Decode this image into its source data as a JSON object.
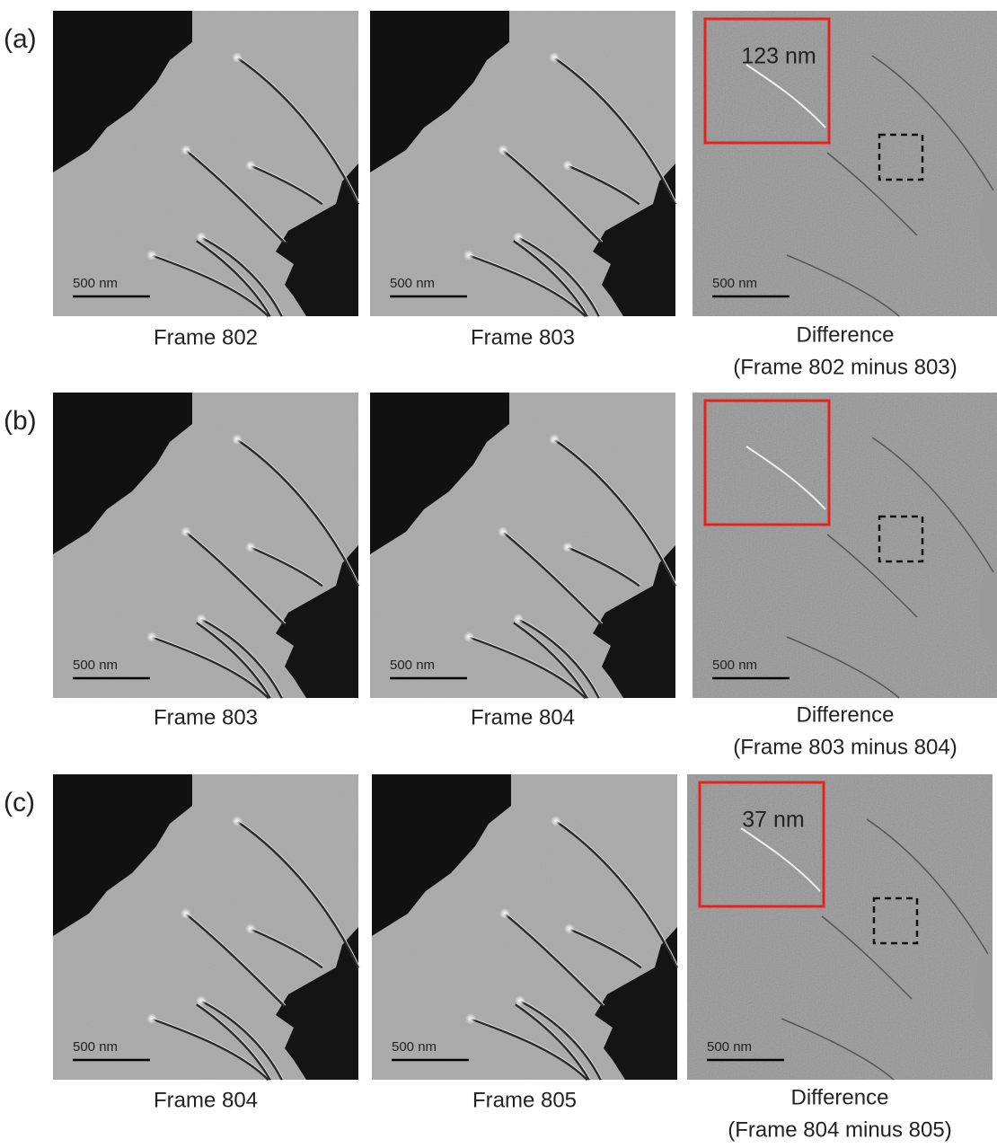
{
  "rows": [
    {
      "label": "(a)",
      "panels": [
        {
          "scale_bar": "500 nm",
          "caption": "Frame 802"
        },
        {
          "scale_bar": "500 nm",
          "caption": "Frame 803"
        },
        {
          "scale_bar": "500 nm",
          "caption": [
            "Difference",
            "(Frame 802 minus 803)"
          ],
          "inset_label": "123 nm"
        }
      ]
    },
    {
      "label": "(b)",
      "panels": [
        {
          "scale_bar": "500 nm",
          "caption": "Frame 803"
        },
        {
          "scale_bar": "500 nm",
          "caption": "Frame 804"
        },
        {
          "scale_bar": "500 nm",
          "caption": [
            "Difference",
            "(Frame 803 minus 804)"
          ]
        }
      ]
    },
    {
      "label": "(c)",
      "panels": [
        {
          "scale_bar": "500 nm",
          "caption": "Frame 804"
        },
        {
          "scale_bar": "500 nm",
          "caption": "Frame 805"
        },
        {
          "scale_bar": "500 nm",
          "caption": [
            "Difference",
            "(Frame 804 minus 805)"
          ],
          "inset_label": "37 nm"
        }
      ]
    }
  ]
}
